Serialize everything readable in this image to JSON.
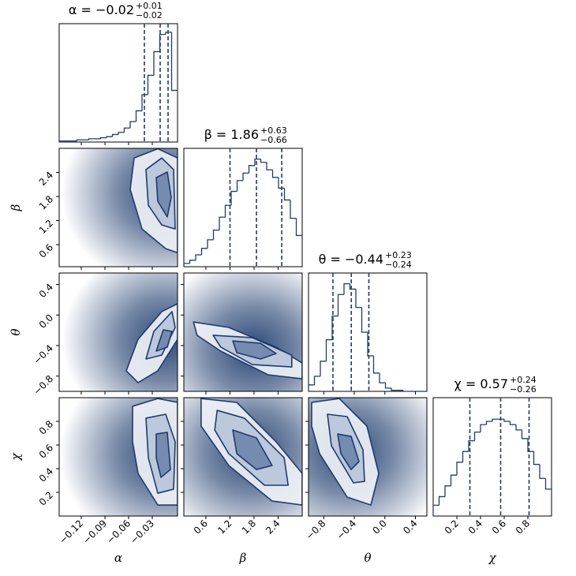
{
  "chart_data": {
    "type": "corner",
    "color": "#1f3c6e",
    "parameters": [
      {
        "label": "α",
        "title": "α = −0.02",
        "upper": "+0.01",
        "lower": "−0.02",
        "lim": [
          -0.148,
          0.002
        ],
        "ticks": [
          {
            "value": -0.12,
            "label": "−0.12"
          },
          {
            "value": -0.09,
            "label": "−0.09"
          },
          {
            "value": -0.06,
            "label": "−0.06"
          },
          {
            "value": -0.03,
            "label": "−0.03"
          }
        ],
        "quantiles": [
          -0.04,
          -0.02,
          -0.01
        ],
        "bins": [
          -0.148,
          -0.1405,
          -0.133,
          -0.1255,
          -0.118,
          -0.1105,
          -0.103,
          -0.0955,
          -0.088,
          -0.0805,
          -0.073,
          -0.0655,
          -0.058,
          -0.0505,
          -0.043,
          -0.0355,
          -0.028,
          -0.0205,
          -0.013,
          -0.0055,
          0.002
        ],
        "counts": [
          1,
          1,
          1,
          2,
          2,
          3,
          3,
          4,
          5,
          7,
          9,
          13,
          19,
          29,
          44,
          62,
          84,
          100,
          102,
          48
        ],
        "hist_ylim": [
          0,
          110
        ]
      },
      {
        "label": "β",
        "title": "β = 1.86",
        "upper": "+0.63",
        "lower": "−0.66",
        "lim": [
          0.05,
          3.0
        ],
        "ticks": [
          0.6,
          1.2,
          1.8,
          2.4
        ],
        "quantiles": [
          1.2,
          1.86,
          2.49
        ],
        "bins": [
          0.05,
          0.1975,
          0.345,
          0.4925,
          0.64,
          0.7875,
          0.935,
          1.0825,
          1.23,
          1.3775,
          1.525,
          1.6725,
          1.82,
          1.9675,
          2.115,
          2.2625,
          2.41,
          2.5575,
          2.705,
          2.8525,
          3.0
        ],
        "counts": [
          3,
          6,
          11,
          17,
          25,
          34,
          46,
          57,
          70,
          80,
          87,
          94,
          100,
          97,
          90,
          83,
          73,
          62,
          45,
          29
        ],
        "hist_ylim": [
          0,
          110
        ]
      },
      {
        "label": "θ",
        "title": "θ = −0.44",
        "upper": "+0.23",
        "lower": "−0.24",
        "lim": [
          -1.0,
          0.55
        ],
        "ticks": [
          {
            "value": -0.8,
            "label": "−0.8"
          },
          {
            "value": -0.4,
            "label": "−0.4"
          },
          {
            "value": 0,
            "label": "0.0"
          },
          0.4
        ],
        "quantiles": [
          -0.68,
          -0.44,
          -0.21
        ],
        "bins": [
          -1,
          -0.9225,
          -0.845,
          -0.7675,
          -0.69,
          -0.6125,
          -0.535,
          -0.4575,
          -0.38,
          -0.3025,
          -0.225,
          -0.1475,
          -0.07,
          0.0075,
          0.085,
          0.1625,
          0.24,
          0.3175,
          0.395,
          0.4725,
          0.55
        ],
        "counts": [
          6,
          14,
          28,
          48,
          70,
          90,
          100,
          95,
          78,
          55,
          33,
          17,
          8,
          3,
          1,
          1,
          0,
          0,
          0,
          0
        ],
        "hist_ylim": [
          0,
          110
        ]
      },
      {
        "label": "χ",
        "title": "χ = 0.57",
        "upper": "+0.24",
        "lower": "−0.26",
        "lim": [
          0,
          1.0
        ],
        "ticks": [
          0.2,
          0.4,
          0.6,
          0.8
        ],
        "quantiles": [
          0.31,
          0.57,
          0.81
        ],
        "bins": [
          0,
          0.05,
          0.1,
          0.15,
          0.2,
          0.25,
          0.3,
          0.35,
          0.4,
          0.45,
          0.5,
          0.55,
          0.6,
          0.65,
          0.7,
          0.75,
          0.8,
          0.85,
          0.9,
          0.95,
          1.0
        ],
        "counts": [
          10,
          18,
          28,
          38,
          50,
          60,
          70,
          78,
          85,
          88,
          90,
          90,
          88,
          85,
          80,
          72,
          60,
          48,
          35,
          25
        ],
        "hist_ylim": [
          0,
          110
        ]
      }
    ],
    "pairs": [
      {
        "contours": [
          {
            "x": [
              -0.053,
              -0.023,
              0.002,
              0.002,
              -0.013,
              -0.043,
              -0.058
            ],
            "y": [
              2.76,
              2.99,
              2.76,
              0.4,
              0.5,
              0.99,
              1.98
            ]
          },
          {
            "x": [
              -0.038,
              -0.018,
              -0.003,
              -0.001,
              -0.018,
              -0.035
            ],
            "y": [
              2.47,
              2.76,
              2.47,
              0.99,
              1.09,
              1.58
            ]
          },
          {
            "x": [
              -0.025,
              -0.011,
              -0.006,
              -0.011,
              -0.023
            ],
            "y": [
              2.27,
              2.41,
              1.78,
              1.29,
              1.68
            ]
          }
        ]
      },
      {
        "contours": [
          {
            "x": [
              -0.063,
              -0.048,
              -0.023,
              0.002,
              0.002,
              -0.018,
              -0.048
            ],
            "y": [
              -0.731,
              -0.886,
              -0.731,
              -0.318,
              0.147,
              0.044,
              -0.318
            ]
          },
          {
            "x": [
              -0.038,
              -0.018,
              -0.001,
              -0.005,
              -0.028
            ],
            "y": [
              -0.576,
              -0.525,
              -0.163,
              0.044,
              -0.215
            ]
          },
          {
            "x": [
              -0.025,
              -0.011,
              -0.005,
              -0.016
            ],
            "y": [
              -0.473,
              -0.421,
              -0.215,
              -0.194
            ]
          }
        ]
      },
      {
        "contours": [
          {
            "x": [
              0.29,
              1.17,
              2.35,
              3.0,
              3.0,
              2.15,
              0.97,
              0.38
            ],
            "y": [
              -0.091,
              -0.163,
              -0.421,
              -0.628,
              -0.835,
              -0.783,
              -0.473,
              -0.266
            ]
          },
          {
            "x": [
              0.78,
              1.76,
              2.74,
              2.74,
              1.76,
              0.97
            ],
            "y": [
              -0.266,
              -0.297,
              -0.525,
              -0.68,
              -0.649,
              -0.421
            ]
          },
          {
            "x": [
              1.27,
              1.96,
              2.35,
              1.96,
              1.37
            ],
            "y": [
              -0.339,
              -0.37,
              -0.504,
              -0.576,
              -0.494
            ]
          }
        ]
      },
      {
        "contours": [
          {
            "x": [
              -0.055,
              -0.023,
              0.002,
              0.002,
              -0.023,
              -0.048,
              -0.055
            ],
            "y": [
              0.927,
              0.993,
              0.96,
              0.093,
              0.093,
              0.36,
              0.627
            ]
          },
          {
            "x": [
              -0.038,
              -0.013,
              -0.001,
              -0.003,
              -0.023,
              -0.035
            ],
            "y": [
              0.827,
              0.86,
              0.627,
              0.227,
              0.193,
              0.493
            ]
          },
          {
            "x": [
              -0.025,
              -0.011,
              -0.007,
              -0.019,
              -0.025
            ],
            "y": [
              0.693,
              0.707,
              0.393,
              0.327,
              0.493
            ]
          }
        ]
      },
      {
        "contours": [
          {
            "x": [
              0.48,
              1.37,
              2.35,
              3.0,
              3.0,
              2.25,
              1.17,
              0.48
            ],
            "y": [
              0.993,
              0.96,
              0.627,
              0.36,
              0.093,
              0.127,
              0.427,
              0.76
            ]
          },
          {
            "x": [
              0.88,
              1.56,
              2.55,
              2.65,
              2.06,
              1.17,
              0.82
            ],
            "y": [
              0.893,
              0.827,
              0.493,
              0.26,
              0.26,
              0.527,
              0.727
            ]
          },
          {
            "x": [
              1.27,
              1.86,
              2.25,
              1.86,
              1.37
            ],
            "y": [
              0.727,
              0.66,
              0.427,
              0.393,
              0.527
            ]
          }
        ]
      },
      {
        "contours": [
          {
            "x": [
              -0.959,
              -0.597,
              -0.235,
              -0.08,
              -0.184,
              -0.494,
              -0.855,
              -0.959
            ],
            "y": [
              0.96,
              0.993,
              0.76,
              0.36,
              0.093,
              0.16,
              0.527,
              0.76
            ]
          },
          {
            "x": [
              -0.752,
              -0.494,
              -0.287,
              -0.266,
              -0.411,
              -0.7
            ],
            "y": [
              0.86,
              0.84,
              0.56,
              0.293,
              0.28,
              0.593
            ]
          },
          {
            "x": [
              -0.618,
              -0.442,
              -0.339,
              -0.442,
              -0.576
            ],
            "y": [
              0.693,
              0.673,
              0.46,
              0.393,
              0.527
            ]
          }
        ]
      }
    ]
  }
}
